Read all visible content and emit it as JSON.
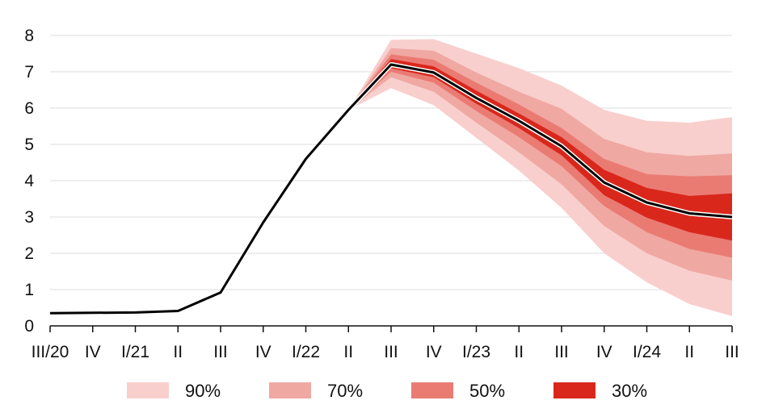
{
  "chart_data": {
    "type": "area",
    "title": "",
    "xlabel": "",
    "ylabel": "",
    "ylim": [
      0,
      8
    ],
    "y_ticks": [
      0,
      1,
      2,
      3,
      4,
      5,
      6,
      7,
      8
    ],
    "grid": "horizontal",
    "legend_placement": "bottom",
    "categories": [
      "III/20",
      "IV",
      "I/21",
      "II",
      "III",
      "IV",
      "I/22",
      "II",
      "III",
      "IV",
      "I/23",
      "II",
      "III",
      "IV",
      "I/24",
      "II",
      "III"
    ],
    "central_line": {
      "color": "#000000",
      "values": [
        0.35,
        0.36,
        0.37,
        0.41,
        0.92,
        2.85,
        4.6,
        5.95,
        7.2,
        6.98,
        6.28,
        5.65,
        4.95,
        3.95,
        3.4,
        3.1,
        3.0
      ]
    },
    "fan_start_index": 7,
    "bands": [
      {
        "name": "90%",
        "color": "#f8cfcd",
        "lower": [
          5.95,
          6.55,
          6.08,
          5.18,
          4.28,
          3.25,
          2.0,
          1.2,
          0.6,
          0.27
        ],
        "upper": [
          5.95,
          7.88,
          7.9,
          7.5,
          7.1,
          6.62,
          5.95,
          5.65,
          5.6,
          5.75
        ]
      },
      {
        "name": "70%",
        "color": "#f0a8a2",
        "lower": [
          5.95,
          6.85,
          6.45,
          5.6,
          4.78,
          3.9,
          2.75,
          2.0,
          1.52,
          1.25
        ],
        "upper": [
          5.95,
          7.65,
          7.58,
          6.98,
          6.45,
          5.98,
          5.15,
          4.78,
          4.68,
          4.75
        ]
      },
      {
        "name": "50%",
        "color": "#ea7b73",
        "lower": [
          5.95,
          7.0,
          6.7,
          5.92,
          5.2,
          4.4,
          3.3,
          2.58,
          2.12,
          1.88
        ],
        "upper": [
          5.95,
          7.48,
          7.33,
          6.7,
          6.1,
          5.45,
          4.6,
          4.18,
          4.12,
          4.15
        ]
      },
      {
        "name": "30%",
        "color": "#d9271c",
        "lower": [
          5.95,
          7.1,
          6.85,
          6.12,
          5.45,
          4.7,
          3.6,
          2.98,
          2.58,
          2.35
        ],
        "upper": [
          5.95,
          7.35,
          7.15,
          6.48,
          5.85,
          5.2,
          4.3,
          3.8,
          3.58,
          3.65
        ]
      }
    ],
    "legend": [
      {
        "label": "90%",
        "color": "#f8cfcd"
      },
      {
        "label": "70%",
        "color": "#f0a8a2"
      },
      {
        "label": "50%",
        "color": "#ea7b73"
      },
      {
        "label": "30%",
        "color": "#d9271c"
      }
    ]
  }
}
